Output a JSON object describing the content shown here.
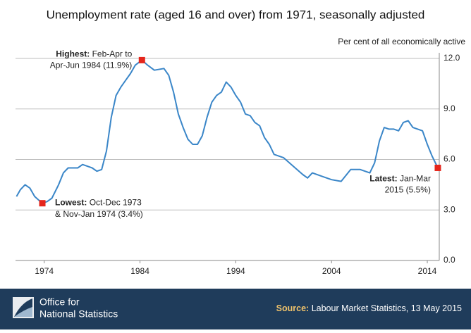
{
  "chart_data": {
    "type": "line",
    "title": "Unemployment rate (aged 16 and over) from 1971, seasonally adjusted",
    "subtitle": "Per cent of all economically active",
    "color": "#3a86c8",
    "marker_color": "#e5261c",
    "grid": true,
    "x": [
      1971.1,
      1971.5,
      1972.0,
      1972.5,
      1973.0,
      1973.8,
      1974.3,
      1974.8,
      1975.5,
      1976.0,
      1976.5,
      1977.5,
      1978.0,
      1978.5,
      1979.0,
      1979.5,
      1980.0,
      1980.5,
      1981.0,
      1981.5,
      1982.0,
      1982.5,
      1983.0,
      1983.5,
      1984.2,
      1984.8,
      1985.5,
      1986.5,
      1987.0,
      1987.5,
      1988.0,
      1988.5,
      1989.0,
      1989.5,
      1990.0,
      1990.5,
      1991.0,
      1991.5,
      1992.0,
      1992.5,
      1993.0,
      1993.5,
      1994.0,
      1994.5,
      1995.0,
      1995.5,
      1996.0,
      1996.5,
      1997.0,
      1997.5,
      1998.0,
      1999.0,
      2000.0,
      2001.0,
      2001.5,
      2002.0,
      2003.0,
      2004.0,
      2005.0,
      2006.0,
      2007.0,
      2008.0,
      2008.5,
      2009.0,
      2009.5,
      2010.0,
      2010.5,
      2011.0,
      2011.5,
      2012.0,
      2012.5,
      2013.0,
      2013.5,
      2014.0,
      2014.5,
      2015.1
    ],
    "values": [
      3.8,
      4.2,
      4.5,
      4.3,
      3.8,
      3.4,
      3.5,
      3.7,
      4.5,
      5.2,
      5.5,
      5.5,
      5.7,
      5.6,
      5.5,
      5.3,
      5.4,
      6.5,
      8.5,
      9.8,
      10.3,
      10.7,
      11.1,
      11.6,
      11.9,
      11.6,
      11.3,
      11.4,
      11.0,
      10.0,
      8.7,
      7.9,
      7.2,
      6.9,
      6.9,
      7.4,
      8.5,
      9.4,
      9.8,
      10.0,
      10.6,
      10.3,
      9.8,
      9.4,
      8.7,
      8.6,
      8.2,
      8.0,
      7.3,
      6.9,
      6.3,
      6.1,
      5.6,
      5.1,
      4.9,
      5.2,
      5.0,
      4.8,
      4.7,
      5.4,
      5.4,
      5.2,
      5.8,
      7.1,
      7.9,
      7.8,
      7.8,
      7.7,
      8.2,
      8.3,
      7.9,
      7.8,
      7.7,
      6.9,
      6.2,
      5.5
    ],
    "xlim": [
      1971,
      2015.25
    ],
    "xticks": [
      1974,
      1984,
      1994,
      2004,
      2014
    ],
    "ylim": [
      0,
      12
    ],
    "yticks": [
      {
        "value": 0,
        "label": "0.0"
      },
      {
        "value": 3,
        "label": "3.0"
      },
      {
        "value": 6,
        "label": "6.0"
      },
      {
        "value": 9,
        "label": "9.0"
      },
      {
        "value": 12,
        "label": "12.0"
      }
    ],
    "annotations": [
      {
        "bold": "Highest:",
        "lines": [
          "Feb-Apr to",
          "Apr-Jun 1984 (11.9%)"
        ],
        "x": 1984.2,
        "y": 11.9
      },
      {
        "bold": "Lowest:",
        "lines": [
          "Oct-Dec 1973",
          "& Nov-Jan 1974 (3.4%)"
        ],
        "x": 1973.8,
        "y": 3.4
      },
      {
        "bold": "Latest:",
        "lines": [
          "Jan-Mar",
          "2015 (5.5%)"
        ],
        "x": 2015.1,
        "y": 5.5
      }
    ],
    "publisher": [
      "Office for",
      "National Statistics"
    ],
    "source": {
      "bold": "Source:",
      "text": "Labour Market Statistics, 13 May 2015"
    }
  }
}
